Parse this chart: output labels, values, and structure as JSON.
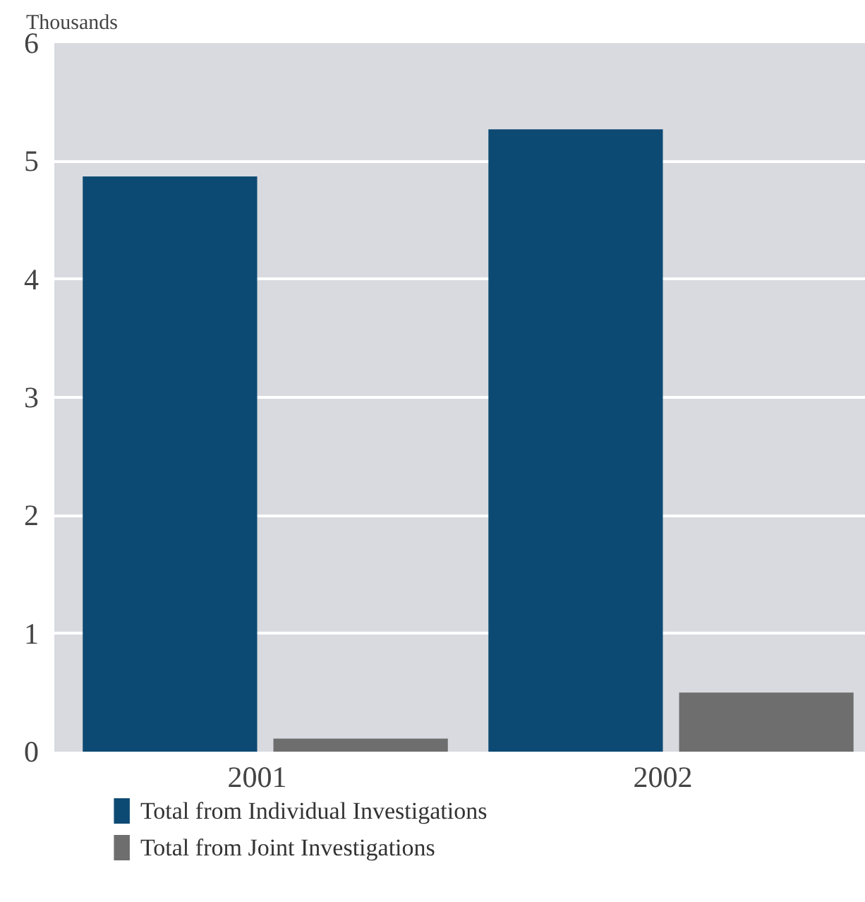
{
  "chart_data": {
    "type": "bar",
    "ylabel": "Thousands",
    "categories": [
      "2001",
      "2002"
    ],
    "series": [
      {
        "name": "Total from Individual Investigations",
        "color": "#0d4a73",
        "values": [
          4.87,
          5.27
        ]
      },
      {
        "name": "Total from Joint Investigations",
        "color": "#6e6e6e",
        "values": [
          0.11,
          0.5
        ]
      }
    ],
    "ylim": [
      0,
      6
    ],
    "yticks": [
      0,
      1,
      2,
      3,
      4,
      5,
      6
    ],
    "grid": "y",
    "legend": "bottom left"
  }
}
